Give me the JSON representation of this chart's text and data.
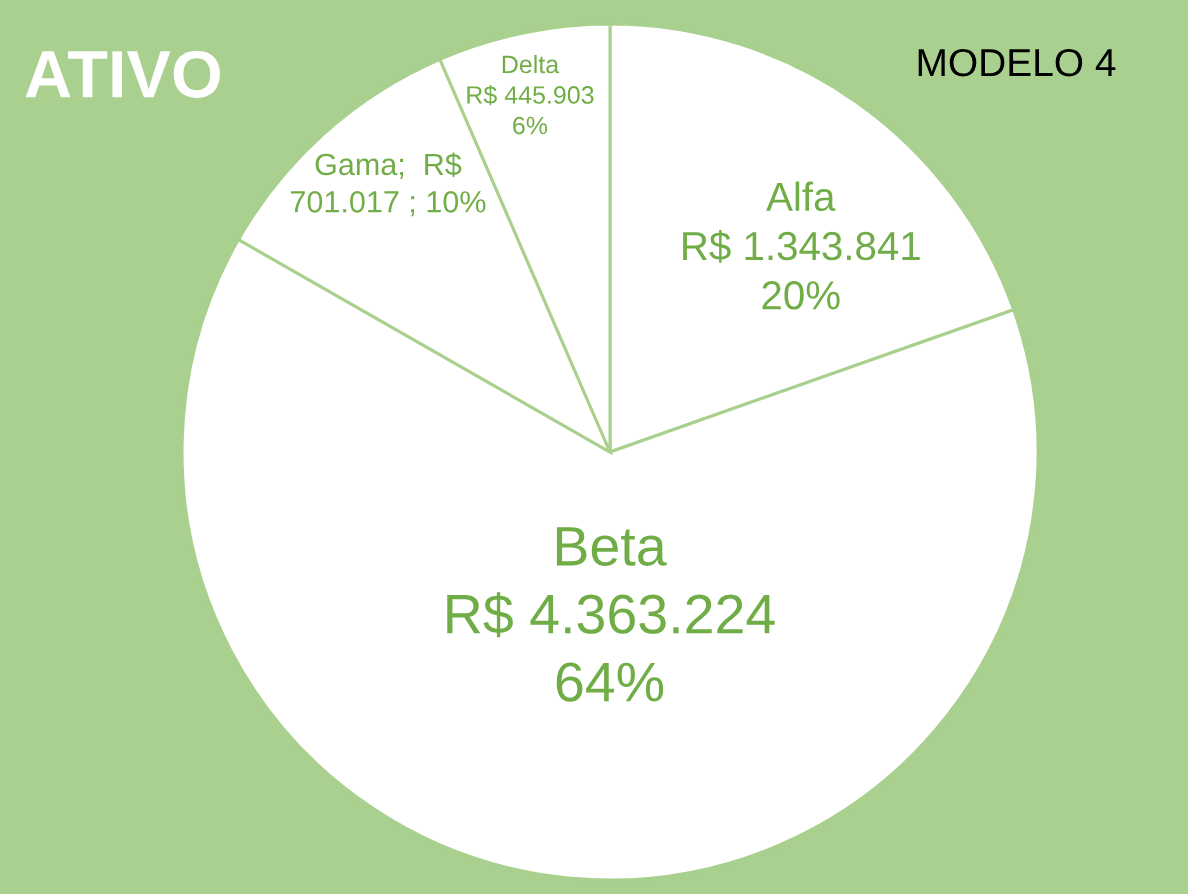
{
  "chart_data": {
    "type": "pie",
    "title": "ATIVO",
    "annotations": [
      "MODELO 4"
    ],
    "categories": [
      "Alfa",
      "Beta",
      "Gama",
      "Delta"
    ],
    "values": [
      1343841,
      4363224,
      701017,
      445903
    ],
    "colors": [
      "#ffffff",
      "#ffffff",
      "#ffffff",
      "#ffffff"
    ],
    "value_labels": [
      "\nR$ 1.343.841\n20%",
      "\nR$ 4.363.224\n64%",
      ";  R$\n701.017 ; 10%",
      "\nR$ 445.903\n6%"
    ]
  }
}
